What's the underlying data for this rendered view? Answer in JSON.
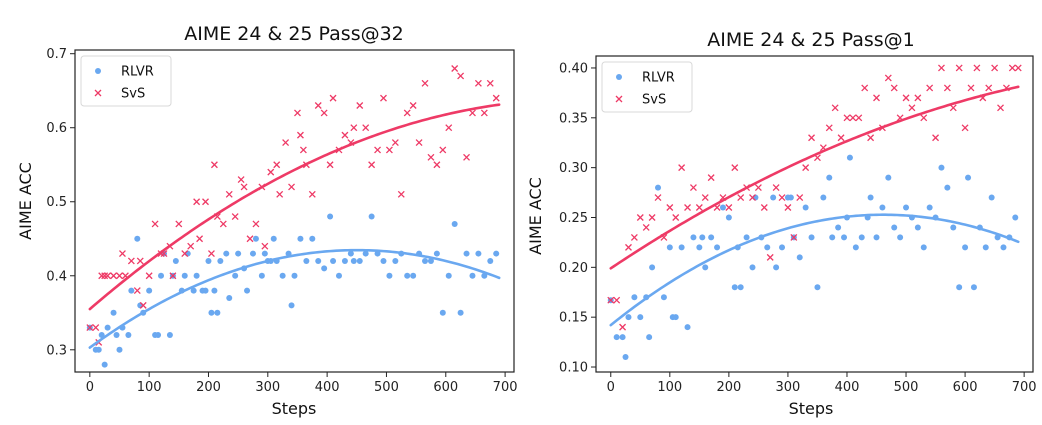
{
  "chart_data": [
    {
      "type": "scatter",
      "title": "AIME 24 & 25 Pass@32",
      "xlabel": "Steps",
      "ylabel": "AIME ACC",
      "xlim": [
        -25,
        715
      ],
      "ylim": [
        0.27,
        0.705
      ],
      "xticks": [
        0,
        100,
        200,
        300,
        400,
        500,
        600,
        700
      ],
      "yticks": [
        0.3,
        0.4,
        0.5,
        0.6,
        0.7
      ],
      "ytick_labels": [
        "0.3",
        "0.4",
        "0.5",
        "0.6",
        "0.7"
      ],
      "legend_position": "top-left",
      "series": [
        {
          "name": "RLVR",
          "marker": "dot",
          "color": "#6aa8f0",
          "x": [
            0,
            10,
            15,
            20,
            25,
            30,
            40,
            45,
            50,
            55,
            65,
            70,
            80,
            85,
            90,
            100,
            110,
            115,
            120,
            125,
            135,
            140,
            145,
            155,
            160,
            165,
            175,
            180,
            190,
            195,
            200,
            205,
            210,
            215,
            220,
            230,
            235,
            245,
            250,
            260,
            265,
            275,
            280,
            290,
            295,
            300,
            305,
            310,
            315,
            325,
            335,
            340,
            345,
            355,
            365,
            375,
            385,
            395,
            405,
            410,
            420,
            430,
            440,
            445,
            455,
            465,
            475,
            485,
            495,
            505,
            515,
            525,
            535,
            545,
            555,
            565,
            575,
            585,
            595,
            605,
            615,
            625,
            635,
            645,
            655,
            665,
            675,
            685
          ],
          "y": [
            0.33,
            0.3,
            0.3,
            0.32,
            0.28,
            0.33,
            0.35,
            0.32,
            0.3,
            0.33,
            0.32,
            0.38,
            0.45,
            0.36,
            0.35,
            0.38,
            0.32,
            0.32,
            0.4,
            0.43,
            0.32,
            0.4,
            0.42,
            0.38,
            0.4,
            0.43,
            0.38,
            0.4,
            0.38,
            0.38,
            0.42,
            0.35,
            0.38,
            0.35,
            0.42,
            0.43,
            0.37,
            0.4,
            0.43,
            0.41,
            0.38,
            0.43,
            0.45,
            0.4,
            0.43,
            0.42,
            0.42,
            0.45,
            0.42,
            0.4,
            0.43,
            0.36,
            0.4,
            0.45,
            0.42,
            0.45,
            0.42,
            0.41,
            0.48,
            0.42,
            0.4,
            0.42,
            0.43,
            0.42,
            0.42,
            0.43,
            0.48,
            0.43,
            0.42,
            0.4,
            0.42,
            0.43,
            0.4,
            0.4,
            0.43,
            0.42,
            0.42,
            0.43,
            0.35,
            0.4,
            0.47,
            0.35,
            0.43,
            0.4,
            0.43,
            0.4,
            0.42,
            0.43
          ]
        },
        {
          "name": "SvS",
          "marker": "x",
          "color": "#ee3a66",
          "x": [
            0,
            10,
            15,
            20,
            25,
            30,
            40,
            50,
            55,
            60,
            70,
            80,
            85,
            90,
            100,
            110,
            120,
            125,
            135,
            140,
            150,
            160,
            170,
            180,
            185,
            195,
            205,
            210,
            215,
            225,
            235,
            245,
            255,
            260,
            270,
            280,
            290,
            295,
            305,
            315,
            320,
            330,
            340,
            350,
            355,
            360,
            365,
            375,
            385,
            395,
            405,
            410,
            420,
            430,
            440,
            445,
            455,
            465,
            475,
            485,
            495,
            505,
            515,
            525,
            535,
            545,
            555,
            565,
            575,
            585,
            595,
            605,
            615,
            625,
            635,
            645,
            655,
            665,
            675,
            685
          ],
          "y": [
            0.33,
            0.33,
            0.31,
            0.4,
            0.4,
            0.4,
            0.4,
            0.4,
            0.43,
            0.4,
            0.42,
            0.38,
            0.42,
            0.36,
            0.4,
            0.47,
            0.43,
            0.43,
            0.44,
            0.4,
            0.47,
            0.43,
            0.44,
            0.5,
            0.45,
            0.5,
            0.43,
            0.55,
            0.48,
            0.47,
            0.51,
            0.48,
            0.53,
            0.52,
            0.45,
            0.47,
            0.52,
            0.44,
            0.54,
            0.55,
            0.51,
            0.58,
            0.52,
            0.62,
            0.59,
            0.57,
            0.55,
            0.51,
            0.63,
            0.62,
            0.55,
            0.64,
            0.57,
            0.59,
            0.58,
            0.6,
            0.63,
            0.6,
            0.55,
            0.57,
            0.64,
            0.57,
            0.58,
            0.51,
            0.62,
            0.63,
            0.58,
            0.66,
            0.56,
            0.55,
            0.57,
            0.6,
            0.68,
            0.67,
            0.56,
            0.62,
            0.66,
            0.62,
            0.66,
            0.64
          ]
        }
      ],
      "trend_lines": [
        {
          "name": "RLVR fit",
          "color": "#6aa8f0",
          "coeffs": [
            0.303,
            0.000585,
            -6.5e-07
          ],
          "x_range": [
            0,
            690
          ]
        },
        {
          "name": "SvS fit",
          "color": "#ee3a66",
          "coeffs": [
            0.355,
            0.00069,
            -4.2e-07
          ],
          "x_range": [
            0,
            690
          ]
        }
      ]
    },
    {
      "type": "scatter",
      "title": "AIME 24 & 25 Pass@1",
      "xlabel": "Steps",
      "ylabel": "AIME ACC",
      "xlim": [
        -25,
        715
      ],
      "ylim": [
        0.095,
        0.412
      ],
      "xticks": [
        0,
        100,
        200,
        300,
        400,
        500,
        600,
        700
      ],
      "yticks": [
        0.1,
        0.15,
        0.2,
        0.25,
        0.3,
        0.35,
        0.4
      ],
      "ytick_labels": [
        "0.10",
        "0.15",
        "0.20",
        "0.25",
        "0.30",
        "0.35",
        "0.40"
      ],
      "legend_position": "top-left",
      "series": [
        {
          "name": "RLVR",
          "marker": "dot",
          "color": "#6aa8f0",
          "x": [
            0,
            10,
            20,
            25,
            30,
            40,
            50,
            60,
            65,
            70,
            80,
            90,
            100,
            105,
            110,
            120,
            130,
            140,
            150,
            155,
            160,
            170,
            180,
            190,
            200,
            210,
            215,
            220,
            230,
            240,
            245,
            255,
            265,
            275,
            280,
            290,
            300,
            305,
            310,
            320,
            330,
            340,
            350,
            360,
            370,
            375,
            385,
            395,
            400,
            405,
            415,
            425,
            435,
            440,
            450,
            460,
            470,
            480,
            490,
            500,
            510,
            520,
            530,
            540,
            550,
            560,
            570,
            580,
            590,
            600,
            605,
            615,
            625,
            635,
            645,
            655,
            665,
            675,
            685
          ],
          "y": [
            0.167,
            0.13,
            0.13,
            0.11,
            0.15,
            0.17,
            0.15,
            0.17,
            0.13,
            0.2,
            0.28,
            0.17,
            0.22,
            0.15,
            0.15,
            0.22,
            0.14,
            0.23,
            0.22,
            0.23,
            0.2,
            0.23,
            0.22,
            0.26,
            0.25,
            0.18,
            0.22,
            0.18,
            0.23,
            0.2,
            0.27,
            0.23,
            0.22,
            0.27,
            0.2,
            0.22,
            0.27,
            0.27,
            0.23,
            0.21,
            0.26,
            0.23,
            0.18,
            0.27,
            0.29,
            0.23,
            0.24,
            0.23,
            0.25,
            0.31,
            0.22,
            0.23,
            0.25,
            0.27,
            0.23,
            0.26,
            0.29,
            0.24,
            0.23,
            0.26,
            0.25,
            0.24,
            0.22,
            0.26,
            0.25,
            0.3,
            0.28,
            0.24,
            0.18,
            0.22,
            0.29,
            0.18,
            0.24,
            0.22,
            0.27,
            0.23,
            0.22,
            0.23,
            0.25
          ]
        },
        {
          "name": "SvS",
          "marker": "x",
          "color": "#ee3a66",
          "x": [
            0,
            10,
            20,
            30,
            40,
            50,
            60,
            70,
            80,
            90,
            100,
            110,
            120,
            130,
            140,
            150,
            160,
            170,
            180,
            190,
            200,
            210,
            220,
            230,
            240,
            250,
            260,
            270,
            280,
            290,
            300,
            310,
            320,
            330,
            340,
            350,
            360,
            370,
            380,
            390,
            400,
            410,
            420,
            430,
            440,
            450,
            460,
            470,
            480,
            490,
            500,
            510,
            520,
            530,
            540,
            550,
            560,
            570,
            580,
            590,
            600,
            610,
            620,
            630,
            640,
            650,
            660,
            670,
            680,
            690
          ],
          "y": [
            0.167,
            0.167,
            0.14,
            0.22,
            0.23,
            0.25,
            0.24,
            0.25,
            0.27,
            0.23,
            0.26,
            0.25,
            0.3,
            0.26,
            0.28,
            0.26,
            0.27,
            0.29,
            0.26,
            0.27,
            0.26,
            0.3,
            0.27,
            0.28,
            0.27,
            0.28,
            0.26,
            0.21,
            0.28,
            0.27,
            0.26,
            0.23,
            0.27,
            0.3,
            0.33,
            0.31,
            0.32,
            0.34,
            0.36,
            0.33,
            0.35,
            0.35,
            0.35,
            0.38,
            0.33,
            0.37,
            0.34,
            0.39,
            0.38,
            0.35,
            0.37,
            0.36,
            0.37,
            0.35,
            0.38,
            0.33,
            0.4,
            0.38,
            0.36,
            0.4,
            0.34,
            0.38,
            0.4,
            0.37,
            0.38,
            0.4,
            0.36,
            0.38,
            0.4,
            0.4
          ]
        }
      ],
      "trend_lines": [
        {
          "name": "RLVR fit",
          "color": "#6aa8f0",
          "coeffs": [
            0.142,
            0.00048,
            -5.2e-07
          ],
          "x_range": [
            0,
            690
          ]
        },
        {
          "name": "SvS fit",
          "color": "#ee3a66",
          "coeffs": [
            0.199,
            0.000395,
            -1.9e-07
          ],
          "x_range": [
            0,
            690
          ]
        }
      ]
    }
  ]
}
